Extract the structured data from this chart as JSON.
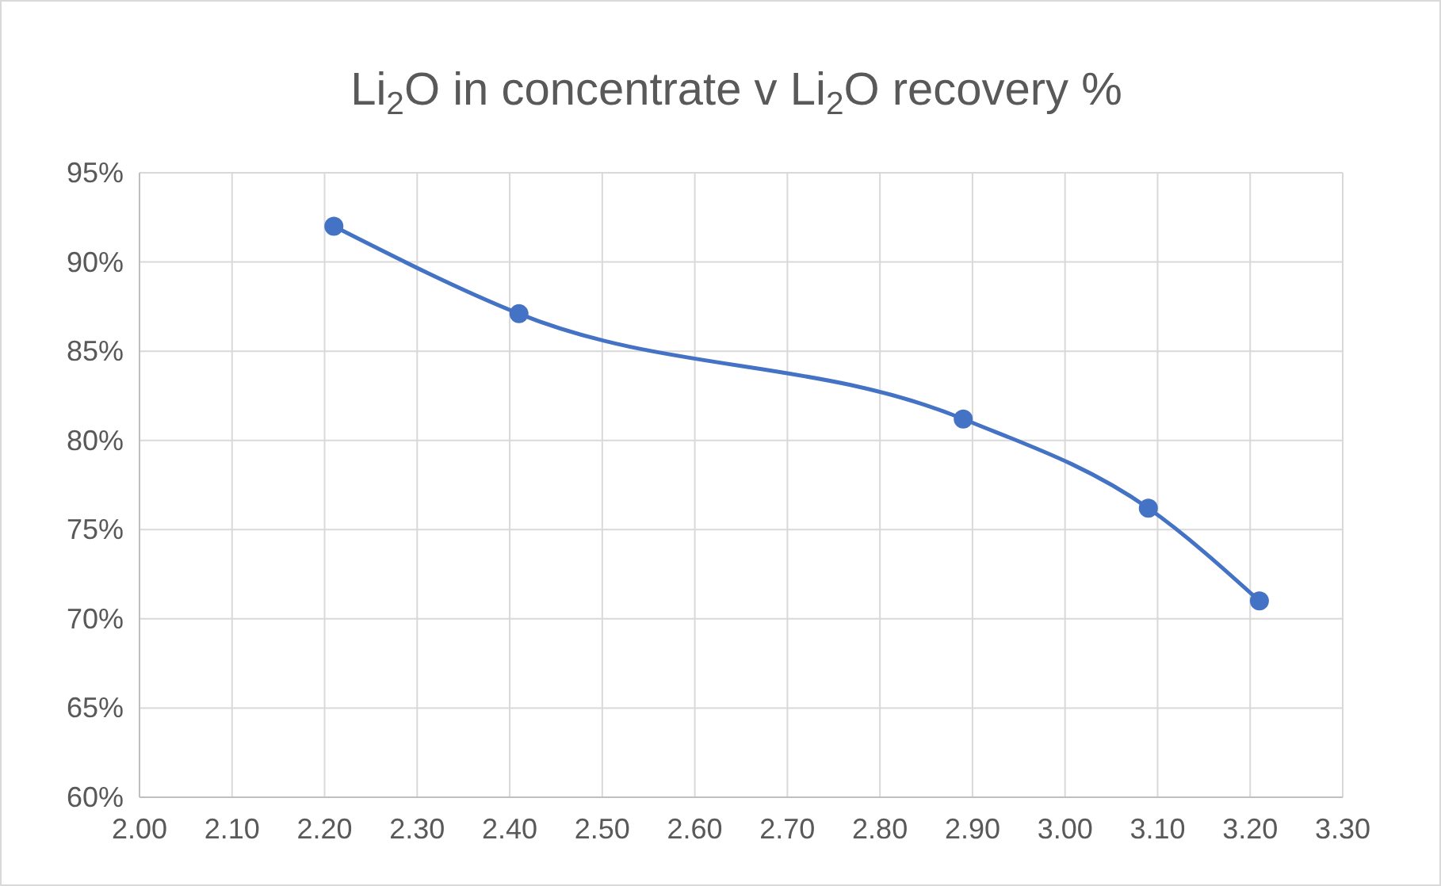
{
  "chart_data": {
    "type": "line",
    "title": "Li$_{2}$O in concentrate v Li$_{2}$O recovery %",
    "x": [
      2.21,
      2.41,
      2.89,
      3.09,
      3.21
    ],
    "series": [
      {
        "color": "#4472c4",
        "values": [
          92,
          87.1,
          81.2,
          76.2,
          71
        ]
      }
    ],
    "xlim": [
      2,
      3.3
    ],
    "xticks": [
      {
        "value": 2,
        "label": "2.00"
      },
      {
        "value": 2.1,
        "label": "2.10"
      },
      {
        "value": 2.2,
        "label": "2.20"
      },
      {
        "value": 2.3,
        "label": "2.30"
      },
      {
        "value": 2.4,
        "label": "2.40"
      },
      {
        "value": 2.5,
        "label": "2.50"
      },
      {
        "value": 2.6,
        "label": "2.60"
      },
      {
        "value": 2.7,
        "label": "2.70"
      },
      {
        "value": 2.8,
        "label": "2.80"
      },
      {
        "value": 2.9,
        "label": "2.90"
      },
      {
        "value": 3,
        "label": "3.00"
      },
      {
        "value": 3.1,
        "label": "3.10"
      },
      {
        "value": 3.2,
        "label": "3.20"
      },
      {
        "value": 3.3,
        "label": "3.30"
      }
    ],
    "ylim": [
      60,
      95
    ],
    "yticks": [
      {
        "value": 60,
        "label": "60%"
      },
      {
        "value": 65,
        "label": "65%"
      },
      {
        "value": 70,
        "label": "70%"
      },
      {
        "value": 75,
        "label": "75%"
      },
      {
        "value": 80,
        "label": "80%"
      },
      {
        "value": 85,
        "label": "85%"
      },
      {
        "value": 90,
        "label": "90%"
      },
      {
        "value": 95,
        "label": "95%"
      }
    ],
    "grid": true,
    "marker": "circle",
    "line_style": "solid"
  }
}
